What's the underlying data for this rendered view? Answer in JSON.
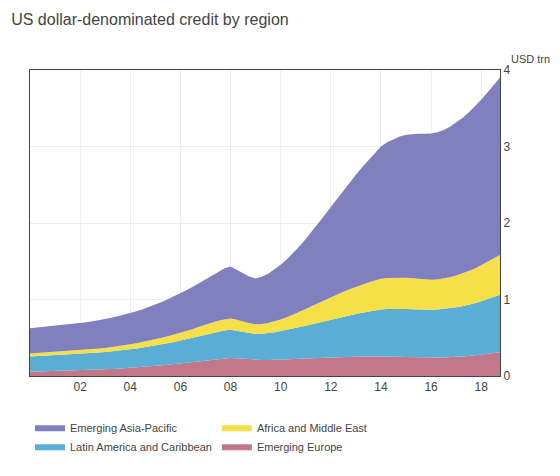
{
  "chart_data": {
    "type": "area",
    "stacked": true,
    "title": "US dollar-denominated credit by region",
    "ylabel": "USD trn",
    "grid": true,
    "legend": "bottom",
    "x": [
      2000.0,
      2000.25,
      2000.5,
      2000.75,
      2001.0,
      2001.25,
      2001.5,
      2001.75,
      2002.0,
      2002.25,
      2002.5,
      2002.75,
      2003.0,
      2003.25,
      2003.5,
      2003.75,
      2004.0,
      2004.25,
      2004.5,
      2004.75,
      2005.0,
      2005.25,
      2005.5,
      2005.75,
      2006.0,
      2006.25,
      2006.5,
      2006.75,
      2007.0,
      2007.25,
      2007.5,
      2007.75,
      2008.0,
      2008.25,
      2008.5,
      2008.75,
      2009.0,
      2009.25,
      2009.5,
      2009.75,
      2010.0,
      2010.25,
      2010.5,
      2010.75,
      2011.0,
      2011.25,
      2011.5,
      2011.75,
      2012.0,
      2012.25,
      2012.5,
      2012.75,
      2013.0,
      2013.25,
      2013.5,
      2013.75,
      2014.0,
      2014.25,
      2014.5,
      2014.75,
      2015.0,
      2015.25,
      2015.5,
      2015.75,
      2016.0,
      2016.25,
      2016.5,
      2016.75,
      2017.0,
      2017.25,
      2017.5,
      2017.75,
      2018.0,
      2018.25,
      2018.5,
      2018.75
    ],
    "series": [
      {
        "name": "Emerging Europe",
        "color": "#c17989",
        "values": [
          0.055,
          0.057,
          0.059,
          0.061,
          0.063,
          0.065,
          0.067,
          0.07,
          0.073,
          0.076,
          0.079,
          0.082,
          0.086,
          0.09,
          0.095,
          0.1,
          0.105,
          0.111,
          0.117,
          0.124,
          0.131,
          0.139,
          0.147,
          0.156,
          0.166,
          0.176,
          0.186,
          0.197,
          0.208,
          0.218,
          0.226,
          0.232,
          0.236,
          0.232,
          0.224,
          0.218,
          0.212,
          0.21,
          0.21,
          0.212,
          0.215,
          0.218,
          0.221,
          0.224,
          0.228,
          0.232,
          0.236,
          0.24,
          0.244,
          0.247,
          0.25,
          0.252,
          0.254,
          0.255,
          0.256,
          0.257,
          0.257,
          0.256,
          0.254,
          0.252,
          0.249,
          0.246,
          0.243,
          0.241,
          0.24,
          0.241,
          0.243,
          0.246,
          0.25,
          0.255,
          0.262,
          0.27,
          0.28,
          0.29,
          0.3,
          0.31
        ]
      },
      {
        "name": "Latin America and Caribbean",
        "color": "#5aadd4",
        "values": [
          0.2,
          0.202,
          0.204,
          0.206,
          0.208,
          0.21,
          0.212,
          0.214,
          0.216,
          0.218,
          0.221,
          0.224,
          0.227,
          0.231,
          0.235,
          0.239,
          0.244,
          0.249,
          0.255,
          0.261,
          0.268,
          0.275,
          0.282,
          0.29,
          0.298,
          0.307,
          0.316,
          0.326,
          0.336,
          0.347,
          0.356,
          0.363,
          0.368,
          0.36,
          0.35,
          0.342,
          0.338,
          0.342,
          0.35,
          0.36,
          0.372,
          0.385,
          0.399,
          0.414,
          0.43,
          0.446,
          0.462,
          0.478,
          0.494,
          0.51,
          0.526,
          0.541,
          0.556,
          0.571,
          0.585,
          0.599,
          0.612,
          0.619,
          0.623,
          0.626,
          0.627,
          0.627,
          0.626,
          0.625,
          0.625,
          0.628,
          0.633,
          0.64,
          0.648,
          0.658,
          0.669,
          0.682,
          0.698,
          0.714,
          0.732,
          0.752
        ]
      },
      {
        "name": "Africa and Middle East",
        "color": "#f5e04a",
        "values": [
          0.038,
          0.039,
          0.04,
          0.041,
          0.042,
          0.043,
          0.044,
          0.045,
          0.046,
          0.048,
          0.05,
          0.052,
          0.054,
          0.056,
          0.059,
          0.062,
          0.065,
          0.068,
          0.072,
          0.076,
          0.08,
          0.085,
          0.09,
          0.095,
          0.101,
          0.107,
          0.113,
          0.12,
          0.127,
          0.134,
          0.14,
          0.145,
          0.148,
          0.143,
          0.136,
          0.13,
          0.126,
          0.127,
          0.133,
          0.142,
          0.153,
          0.166,
          0.182,
          0.199,
          0.217,
          0.236,
          0.255,
          0.274,
          0.292,
          0.31,
          0.326,
          0.341,
          0.355,
          0.368,
          0.38,
          0.391,
          0.401,
          0.406,
          0.408,
          0.409,
          0.408,
          0.404,
          0.399,
          0.395,
          0.392,
          0.394,
          0.399,
          0.406,
          0.416,
          0.427,
          0.44,
          0.454,
          0.47,
          0.487,
          0.504,
          0.52
        ]
      },
      {
        "name": "Emerging Asia-Pacific",
        "color": "#8080be",
        "values": [
          0.33,
          0.333,
          0.336,
          0.34,
          0.343,
          0.347,
          0.35,
          0.354,
          0.357,
          0.361,
          0.366,
          0.371,
          0.377,
          0.384,
          0.391,
          0.399,
          0.408,
          0.418,
          0.429,
          0.441,
          0.454,
          0.468,
          0.483,
          0.499,
          0.516,
          0.534,
          0.553,
          0.574,
          0.596,
          0.62,
          0.645,
          0.666,
          0.68,
          0.656,
          0.63,
          0.61,
          0.598,
          0.618,
          0.645,
          0.678,
          0.715,
          0.758,
          0.806,
          0.858,
          0.915,
          0.975,
          1.04,
          1.108,
          1.178,
          1.25,
          1.322,
          1.394,
          1.466,
          1.536,
          1.604,
          1.67,
          1.73,
          1.776,
          1.814,
          1.845,
          1.87,
          1.888,
          1.9,
          1.907,
          1.912,
          1.924,
          1.942,
          1.966,
          1.996,
          2.032,
          2.072,
          2.116,
          2.164,
          2.215,
          2.268,
          2.32
        ]
      }
    ],
    "xlim": [
      2000,
      2018.75
    ],
    "xticks": [
      {
        "value": 2002,
        "label": "02"
      },
      {
        "value": 2004,
        "label": "04"
      },
      {
        "value": 2006,
        "label": "06"
      },
      {
        "value": 2008,
        "label": "08"
      },
      {
        "value": 2010,
        "label": "10"
      },
      {
        "value": 2012,
        "label": "12"
      },
      {
        "value": 2014,
        "label": "14"
      },
      {
        "value": 2016,
        "label": "16"
      },
      {
        "value": 2018,
        "label": "18"
      }
    ],
    "ylim": [
      0,
      4
    ],
    "yticks": [
      0,
      1,
      2,
      3,
      4
    ]
  }
}
